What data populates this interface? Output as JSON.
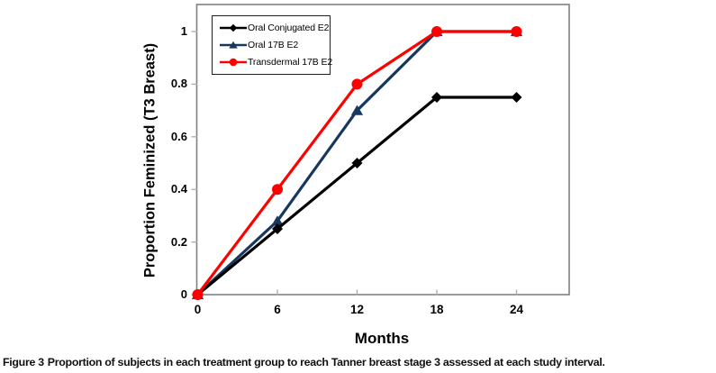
{
  "chart_data": {
    "type": "line",
    "title": "",
    "xlabel": "Months",
    "ylabel": "Proportion Feminized (T3 Breast)",
    "x": [
      0,
      6,
      12,
      18,
      24
    ],
    "xtick_labels": [
      "0",
      "6",
      "12",
      "18",
      "24"
    ],
    "yticks": [
      0,
      0.2,
      0.4,
      0.6,
      0.8,
      1
    ],
    "ytick_labels": [
      "0",
      "0.2",
      "0.4",
      "0.6",
      "0.8",
      "1"
    ],
    "xlim": [
      0,
      28
    ],
    "ylim": [
      0,
      1.1
    ],
    "grid": false,
    "legend_position": "top-left inside",
    "axis_color": "#808080",
    "tick_color": "#ABABAB",
    "series": [
      {
        "name": "Oral Conjugated E2",
        "marker": "diamond",
        "color": "#000000",
        "values": [
          0,
          0.25,
          0.5,
          0.75,
          0.75
        ]
      },
      {
        "name": "Oral 17B E2",
        "marker": "triangle",
        "color": "#17375E",
        "values": [
          0,
          0.28,
          0.7,
          1.0,
          1.0
        ]
      },
      {
        "name": "Transdermal 17B E2",
        "marker": "circle",
        "color": "#FF0000",
        "values": [
          0,
          0.4,
          0.8,
          1.0,
          1.0
        ]
      }
    ]
  },
  "caption": {
    "label": "Figure 3",
    "text": "Proportion of subjects in each treatment group to reach Tanner breast stage 3 assessed at each study interval."
  }
}
